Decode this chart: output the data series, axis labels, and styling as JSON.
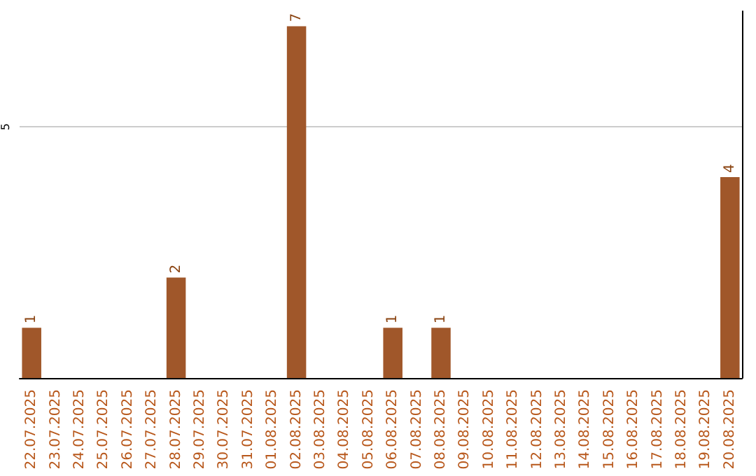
{
  "chart_data": {
    "type": "bar",
    "categories": [
      "22.07.2025",
      "23.07.2025",
      "24.07.2025",
      "25.07.2025",
      "26.07.2025",
      "27.07.2025",
      "28.07.2025",
      "29.07.2025",
      "30.07.2025",
      "31.07.2025",
      "01.08.2025",
      "02.08.2025",
      "03.08.2025",
      "04.08.2025",
      "05.08.2025",
      "06.08.2025",
      "07.08.2025",
      "08.08.2025",
      "09.08.2025",
      "10.08.2025",
      "11.08.2025",
      "12.08.2025",
      "13.08.2025",
      "14.08.2025",
      "15.08.2025",
      "16.08.2025",
      "17.08.2025",
      "18.08.2025",
      "19.08.2025",
      "20.08.2025"
    ],
    "values": [
      1,
      0,
      0,
      0,
      0,
      0,
      2,
      0,
      0,
      0,
      0,
      7,
      0,
      0,
      0,
      1,
      0,
      1,
      0,
      0,
      0,
      0,
      0,
      0,
      0,
      0,
      0,
      0,
      0,
      4
    ],
    "color": "#a0572a",
    "value_labels": [
      "1",
      null,
      null,
      null,
      null,
      null,
      "2",
      null,
      null,
      null,
      null,
      "7",
      null,
      null,
      null,
      "1",
      null,
      "1",
      null,
      null,
      null,
      null,
      null,
      null,
      null,
      null,
      null,
      null,
      null,
      "4"
    ],
    "ylim": [
      0,
      7.3
    ],
    "yticks": [
      5
    ],
    "grid": "y"
  }
}
